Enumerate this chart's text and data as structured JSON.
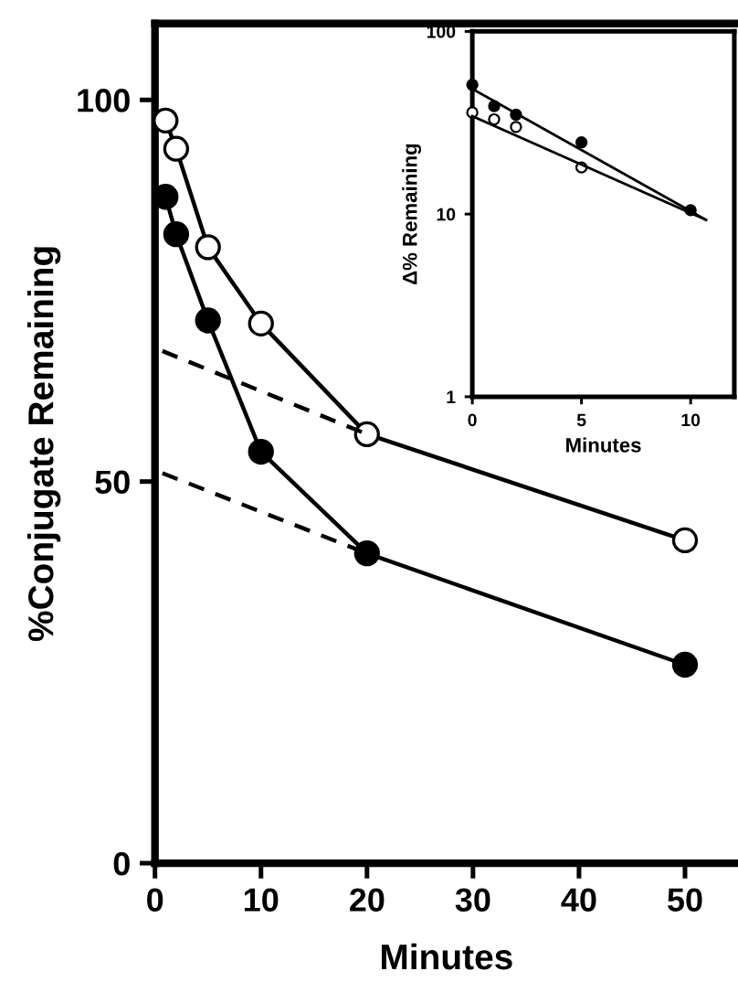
{
  "chart_data": [
    {
      "type": "line",
      "xlabel": "Minutes",
      "ylabel": "%Conjugate Remaining",
      "xlim": [
        0,
        55
      ],
      "ylim": [
        0,
        110
      ],
      "xticks": [
        0,
        10,
        20,
        30,
        40,
        50
      ],
      "yticks": [
        0,
        50,
        100
      ],
      "grid": false,
      "legend": false,
      "marker": "circle",
      "line_style": "solid",
      "series": [
        {
          "color": "#ffffff",
          "x": [
            1,
            2,
            5,
            10,
            20,
            50
          ],
          "values": [
            97.3,
            93.6,
            80.7,
            70.7,
            56.2,
            42.3
          ]
        },
        {
          "color": "#000000",
          "x": [
            1,
            2,
            5,
            10,
            20,
            50
          ],
          "values": [
            87.3,
            82.4,
            71.1,
            53.9,
            40.6,
            26
          ]
        },
        {
          "color": "#000000",
          "marker": "none",
          "line_style": "dashed",
          "x": [
            0.7,
            20
          ],
          "values": [
            67.1,
            56.2
          ]
        },
        {
          "color": "#000000",
          "marker": "none",
          "line_style": "dashed",
          "x": [
            0.7,
            20
          ],
          "values": [
            51.1,
            40.6
          ]
        }
      ]
    },
    {
      "type": "scatter",
      "xlabel": "Minutes",
      "ylabel": "Δ% Remaining",
      "log": "y",
      "xlim": [
        0,
        12
      ],
      "ylim": [
        1,
        100
      ],
      "xticks": [
        0,
        5,
        10
      ],
      "yticks": [
        1,
        10,
        100
      ],
      "grid": false,
      "legend": false,
      "marker": "circle",
      "series": [
        {
          "color": "#000000",
          "x": [
            0,
            1,
            2,
            5,
            10
          ],
          "values": [
            51,
            39,
            35,
            24.7,
            10.5
          ]
        },
        {
          "color": "#ffffff",
          "x": [
            0,
            1,
            2,
            5
          ],
          "values": [
            36,
            33,
            30,
            18
          ]
        },
        {
          "type": "line",
          "color": "#000000",
          "marker": "none",
          "x": [
            0,
            10.7
          ],
          "values": [
            48.5,
            9.3
          ]
        },
        {
          "type": "line",
          "color": "#000000",
          "marker": "none",
          "x": [
            0,
            10.7
          ],
          "values": [
            34.4,
            9.3
          ]
        }
      ]
    }
  ]
}
